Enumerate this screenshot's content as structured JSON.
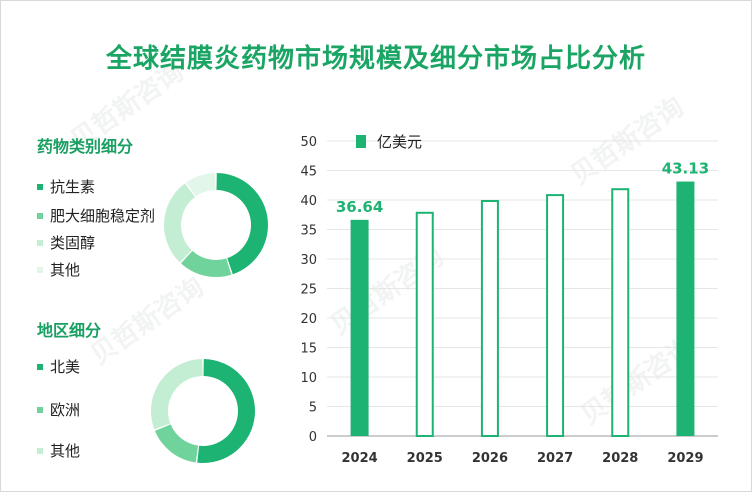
{
  "title": "全球结膜炎药物市场规模及细分市场占比分析",
  "drug_section": {
    "heading": "药物类别细分",
    "items": [
      {
        "label": "抗生素",
        "color": "#1db372",
        "share": 0.45
      },
      {
        "label": "肥大细胞稳定剂",
        "color": "#6fd39b",
        "share": 0.17
      },
      {
        "label": "类固醇",
        "color": "#c3eed4",
        "share": 0.28
      },
      {
        "label": "其他",
        "color": "#e3f6ea",
        "share": 0.1
      }
    ]
  },
  "region_section": {
    "heading": "地区细分",
    "items": [
      {
        "label": "北美",
        "color": "#1db372",
        "share": 0.52
      },
      {
        "label": "欧洲",
        "color": "#6fd39b",
        "share": 0.17
      },
      {
        "label": "其他",
        "color": "#c3eed4",
        "share": 0.31
      }
    ]
  },
  "chart_data": {
    "type": "bar",
    "legend": "亿美元",
    "categories": [
      "2024",
      "2025",
      "2026",
      "2027",
      "2028",
      "2029"
    ],
    "values": [
      36.64,
      38.0,
      40.0,
      41.0,
      42.0,
      43.13
    ],
    "filled": [
      true,
      false,
      false,
      false,
      false,
      true
    ],
    "data_labels": [
      "36.64",
      "",
      "",
      "",
      "",
      "43.13"
    ],
    "ylim": [
      0,
      50
    ],
    "yticks": [
      0,
      5,
      10,
      15,
      20,
      25,
      30,
      35,
      40,
      45,
      50
    ],
    "bar_color": "#1db372",
    "grid": true
  }
}
